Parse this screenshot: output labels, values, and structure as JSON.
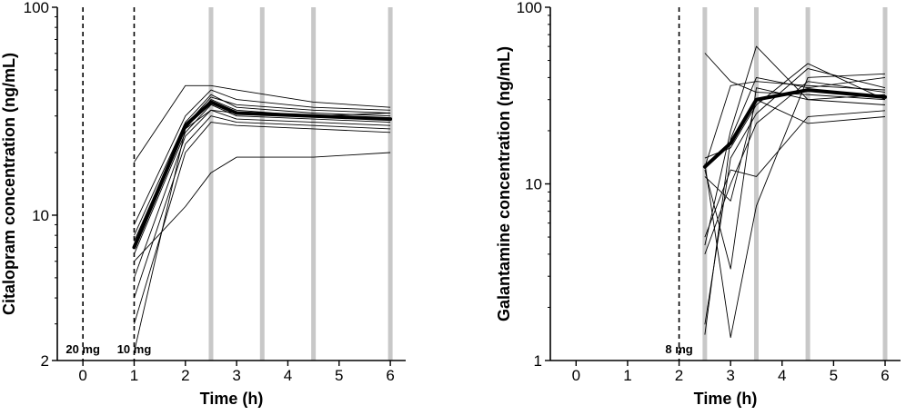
{
  "chart_data": [
    {
      "type": "line",
      "xlabel": "Time (h)",
      "ylabel": "Citalopram concentration (ng/mL)",
      "y_scale": "log",
      "xlim": [
        -0.5,
        6.3
      ],
      "ylim": [
        2,
        100
      ],
      "x_ticks": [
        "0",
        "1",
        "2",
        "3",
        "4",
        "5",
        "6"
      ],
      "y_ticks": [
        "2",
        "10",
        "100"
      ],
      "dose_lines": [
        {
          "x": 0,
          "label": "20 mg"
        },
        {
          "x": 1,
          "label": "10 mg"
        }
      ],
      "sample_bars": [
        2.5,
        3.5,
        4.5,
        6
      ],
      "mean_series": {
        "x": [
          1,
          2,
          2.5,
          3,
          4.5,
          6
        ],
        "y": [
          7.0,
          27,
          35,
          31,
          30,
          29
        ]
      },
      "individual_series": [
        {
          "x": [
            1,
            2,
            2.5,
            3,
            4.5,
            6
          ],
          "y": [
            18.0,
            42,
            42,
            40,
            35,
            33
          ]
        },
        {
          "x": [
            1,
            2,
            2.5,
            3,
            4.5,
            6
          ],
          "y": [
            9.0,
            30,
            40,
            36,
            33,
            32
          ]
        },
        {
          "x": [
            1,
            2,
            2.5,
            3,
            4.5,
            6
          ],
          "y": [
            8.0,
            28,
            38,
            33,
            31,
            30
          ]
        },
        {
          "x": [
            1,
            2,
            2.5,
            3,
            4.5,
            6
          ],
          "y": [
            7.0,
            26,
            36,
            32,
            30,
            29
          ]
        },
        {
          "x": [
            1,
            2,
            2.5,
            3,
            4.5,
            6
          ],
          "y": [
            6.5,
            25,
            34,
            30,
            29,
            28
          ]
        },
        {
          "x": [
            1,
            2,
            2.5,
            3,
            4.5,
            6
          ],
          "y": [
            5.0,
            24,
            32,
            29,
            28,
            27
          ]
        },
        {
          "x": [
            1,
            2,
            2.5,
            3,
            4.5,
            6
          ],
          "y": [
            4.0,
            22,
            30,
            28,
            27,
            26
          ]
        },
        {
          "x": [
            1,
            2,
            2.5,
            3,
            4.5,
            6
          ],
          "y": [
            3.0,
            20,
            28,
            27,
            26,
            25
          ]
        },
        {
          "x": [
            1,
            2,
            2.5,
            3,
            4.5,
            6
          ],
          "y": [
            2.2,
            26,
            32,
            31,
            30,
            31
          ]
        },
        {
          "x": [
            1,
            2,
            2.5,
            3,
            4.5,
            6
          ],
          "y": [
            7.5,
            27,
            37,
            34,
            32,
            31
          ]
        },
        {
          "x": [
            1,
            2,
            2.5,
            3,
            4.5,
            6
          ],
          "y": [
            6.0,
            11,
            16,
            19,
            19,
            20
          ]
        }
      ]
    },
    {
      "type": "line",
      "xlabel": "Time (h)",
      "ylabel": "Galantamine concentration (ng/mL)",
      "y_scale": "log",
      "xlim": [
        -0.5,
        6.3
      ],
      "ylim": [
        1,
        100
      ],
      "x_ticks": [
        "0",
        "1",
        "2",
        "3",
        "4",
        "5",
        "6"
      ],
      "y_ticks": [
        "1",
        "10",
        "100"
      ],
      "dose_lines": [
        {
          "x": 2,
          "label": "8 mg"
        }
      ],
      "sample_bars": [
        2.5,
        3.5,
        4.5,
        6
      ],
      "mean_series": {
        "x": [
          2.5,
          3,
          3.5,
          4.5,
          6
        ],
        "y": [
          12.5,
          17,
          30,
          34,
          31
        ]
      },
      "individual_series": [
        {
          "x": [
            2.5,
            3,
            3.5,
            4.5,
            6
          ],
          "y": [
            55.0,
            38,
            33,
            32,
            30
          ]
        },
        {
          "x": [
            2.5,
            3,
            3.5,
            4.5,
            6
          ],
          "y": [
            4.5,
            20,
            60,
            30,
            28
          ]
        },
        {
          "x": [
            2.5,
            3,
            3.5,
            4.5,
            6
          ],
          "y": [
            1.4,
            18,
            40,
            35,
            40
          ]
        },
        {
          "x": [
            2.5,
            3,
            3.5,
            4.5,
            6
          ],
          "y": [
            1.6,
            14,
            25,
            45,
            35
          ]
        },
        {
          "x": [
            2.5,
            3,
            3.5,
            4.5,
            6
          ],
          "y": [
            5.0,
            12,
            11,
            24,
            26
          ]
        },
        {
          "x": [
            2.5,
            3,
            3.5,
            4.5,
            6
          ],
          "y": [
            4.0,
            10,
            22,
            38,
            33
          ]
        },
        {
          "x": [
            2.5,
            3,
            3.5,
            4.5,
            6
          ],
          "y": [
            12.0,
            3.3,
            35,
            30,
            32
          ]
        },
        {
          "x": [
            2.5,
            3,
            3.5,
            4.5,
            6
          ],
          "y": [
            13.0,
            1.35,
            7.5,
            40,
            42
          ]
        },
        {
          "x": [
            2.5,
            3,
            3.5,
            4.5,
            6
          ],
          "y": [
            11.0,
            8,
            30,
            22,
            24
          ]
        },
        {
          "x": [
            2.5,
            3,
            3.5,
            4.5,
            6
          ],
          "y": [
            14.0,
            16,
            28,
            48,
            30
          ]
        },
        {
          "x": [
            2.5,
            3,
            3.5,
            4.5,
            6
          ],
          "y": [
            12.5,
            36,
            38,
            36,
            34
          ]
        }
      ]
    }
  ]
}
